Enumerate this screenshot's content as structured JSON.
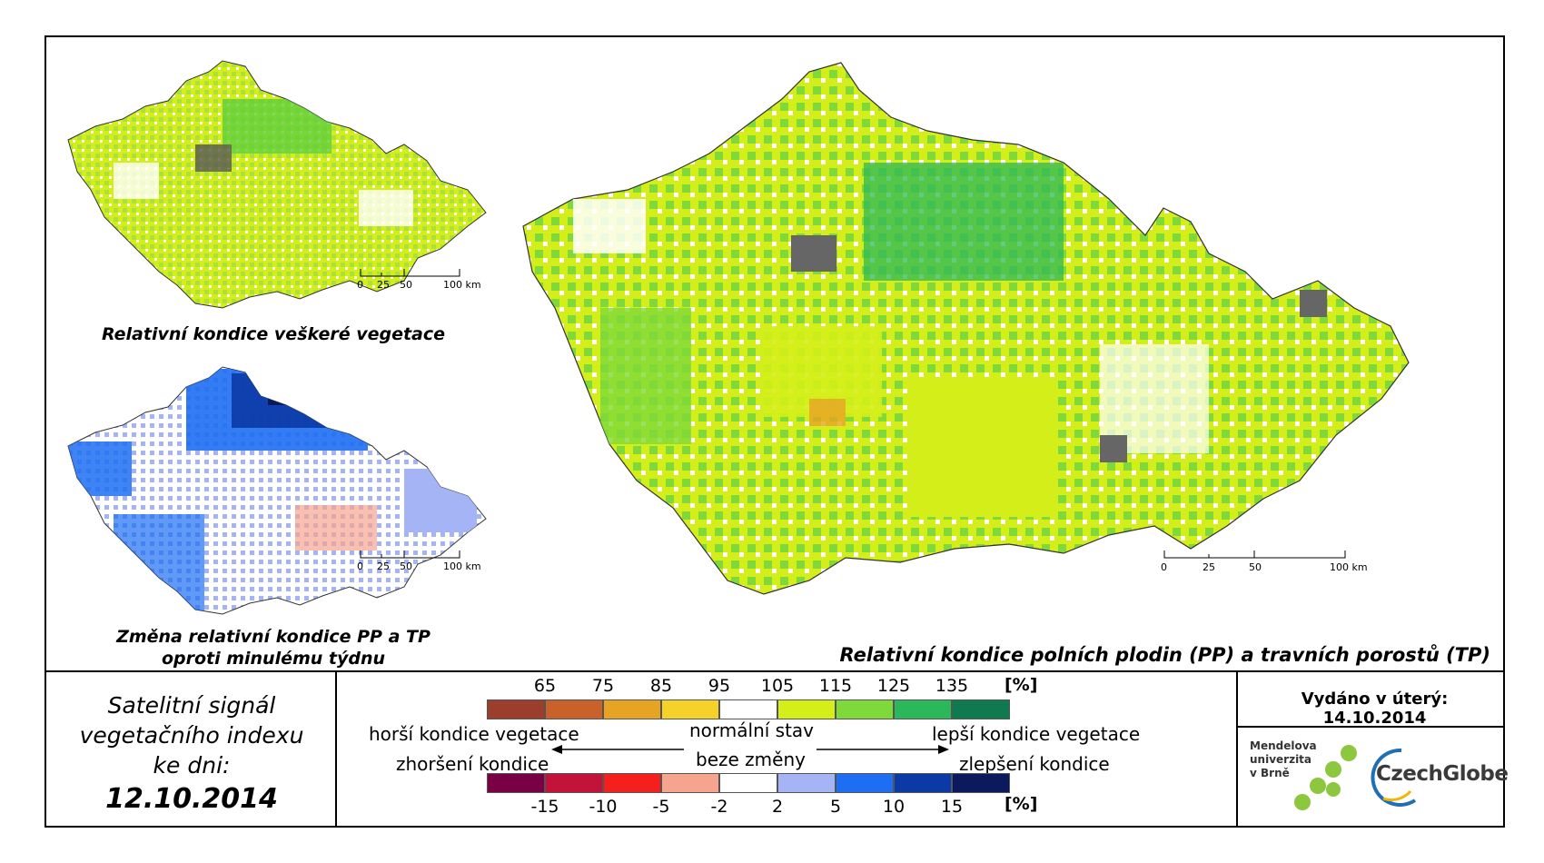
{
  "maps": {
    "small_top": {
      "caption": "Relativní kondice veškeré vegetace"
    },
    "small_bottom": {
      "caption_line1": "Změna relativní kondice PP a TP",
      "caption_line2": "oproti minulému týdnu"
    },
    "main": {
      "caption": "Relativní kondice polních plodin (PP) a travních porostů (TP)"
    },
    "scale_labels": [
      "0",
      "25",
      "50",
      "100 km"
    ]
  },
  "info": {
    "line1": "Satelitní signál",
    "line2": "vegetačního indexu",
    "line3": "ke dni:",
    "date": "12.10.2014"
  },
  "legend": {
    "top_values": [
      "65",
      "75",
      "85",
      "95",
      "105",
      "115",
      "125",
      "135"
    ],
    "top_unit": "[%]",
    "top_colors": [
      "#9b3f2c",
      "#c9612a",
      "#e7a324",
      "#f5d229",
      "#ffffff",
      "#d4ee1a",
      "#7fd93a",
      "#2cb85a",
      "#0f7a4f"
    ],
    "bottom_values": [
      "-15",
      "-10",
      "-5",
      "-2",
      "2",
      "5",
      "10",
      "15"
    ],
    "bottom_unit": "[%]",
    "bottom_colors": [
      "#7a0045",
      "#c2143a",
      "#f5201e",
      "#f6a48e",
      "#ffffff",
      "#a5b4f4",
      "#1d6ef2",
      "#0b3aa6",
      "#0a1a5c"
    ],
    "left_line1": "horší kondice vegetace",
    "left_line2": "zhoršení kondice",
    "center_line1": "normální stav",
    "center_line2": "beze změny",
    "right_line1": "lepší kondice vegetace",
    "right_line2": "zlepšení kondice"
  },
  "issued": {
    "text": "Vydáno v úterý: 14.10.2014"
  },
  "logos": {
    "mendel_line1": "Mendelova",
    "mendel_line2": "univerzita",
    "mendel_line3": "v Brně",
    "czechglobe": "CzechGlobe"
  }
}
